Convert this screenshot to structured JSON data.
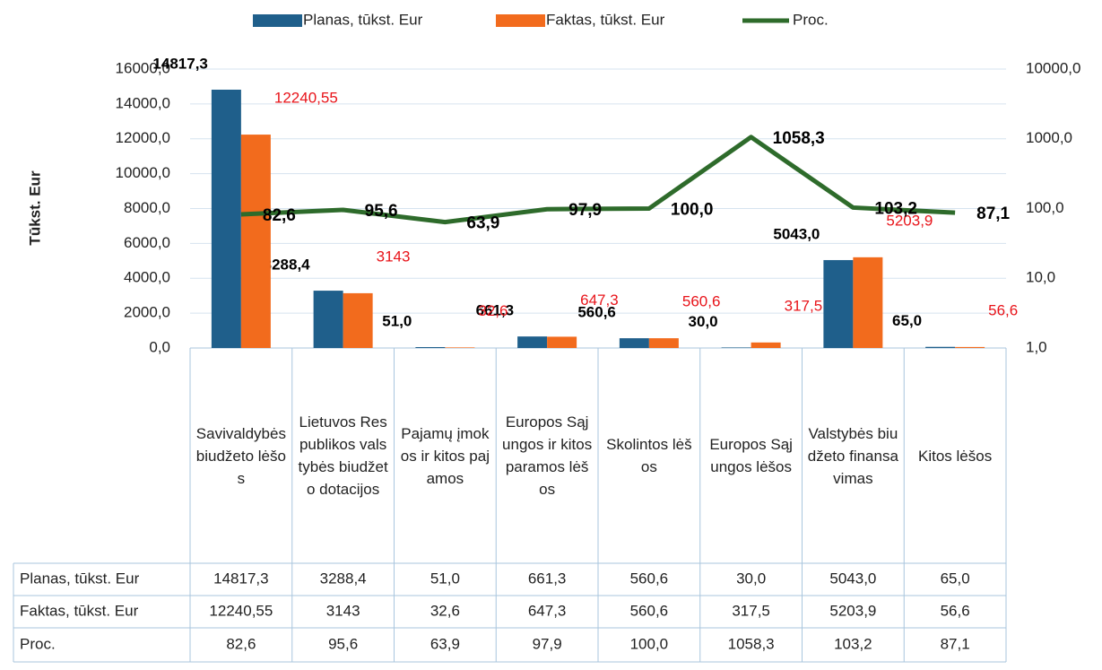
{
  "chart_data": {
    "type": "bar_line",
    "y_axis_label": "Tūkst. Eur",
    "categories": [
      "Savivaldybės biudžeto lėšos",
      "Lietuvos Respublikos valstybės biudžeto dotacijos",
      "Pajamų įmokos ir kitos pajamos",
      "Europos Sąjungos ir kitos paramos lėšos",
      "Skolintos lėšos",
      "Europos Sąjungos lėšos",
      "Valstybės biudžeto finansavimas",
      "Kitos lėšos"
    ],
    "series": [
      {
        "name": "Planas, tūkst. Eur",
        "type": "bar",
        "color": "#1f5f8b",
        "values": [
          14817.3,
          3288.4,
          51.0,
          661.3,
          560.6,
          30.0,
          5043.0,
          65.0
        ],
        "value_labels": [
          "14817,3",
          "3288,4",
          "51,0",
          "661,3",
          "560,6",
          "30,0",
          "5043,0",
          "65,0"
        ]
      },
      {
        "name": "Faktas, tūkst. Eur",
        "type": "bar",
        "color": "#f26b1d",
        "values": [
          12240.55,
          3143,
          32.6,
          647.3,
          560.6,
          317.5,
          5203.9,
          56.6
        ],
        "value_labels": [
          "12240,55",
          "3143",
          "32,6",
          "647,3",
          "560,6",
          "317,5",
          "5203,9",
          "56,6"
        ]
      },
      {
        "name": "Proc.",
        "type": "line",
        "axis": "y2",
        "color": "#2e6b2b",
        "values": [
          82.6,
          95.6,
          63.9,
          97.9,
          100.0,
          1058.3,
          103.2,
          87.1
        ],
        "value_labels": [
          "82,6",
          "95,6",
          "63,9",
          "97,9",
          "100,0",
          "1058,3",
          "103,2",
          "87,1"
        ]
      }
    ],
    "ylim": [
      0,
      16000
    ],
    "yticks": [
      {
        "value": 0,
        "label": "0,0"
      },
      {
        "value": 2000,
        "label": "2000,0"
      },
      {
        "value": 4000,
        "label": "4000,0"
      },
      {
        "value": 6000,
        "label": "6000,0"
      },
      {
        "value": 8000,
        "label": "8000,0"
      },
      {
        "value": 10000,
        "label": "10000,0"
      },
      {
        "value": 12000,
        "label": "12000,0"
      },
      {
        "value": 14000,
        "label": "14000,0"
      },
      {
        "value": 16000,
        "label": "16000,0"
      }
    ],
    "y2lim": [
      1,
      10000
    ],
    "y2_log": true,
    "y2ticks": [
      {
        "value": 1,
        "label": "1,0"
      },
      {
        "value": 10,
        "label": "10,0"
      },
      {
        "value": 100,
        "label": "100,0"
      },
      {
        "value": 1000,
        "label": "1000,0"
      },
      {
        "value": 10000,
        "label": "10000,0"
      }
    ],
    "grid": true,
    "legend": "top",
    "data_table": true
  }
}
